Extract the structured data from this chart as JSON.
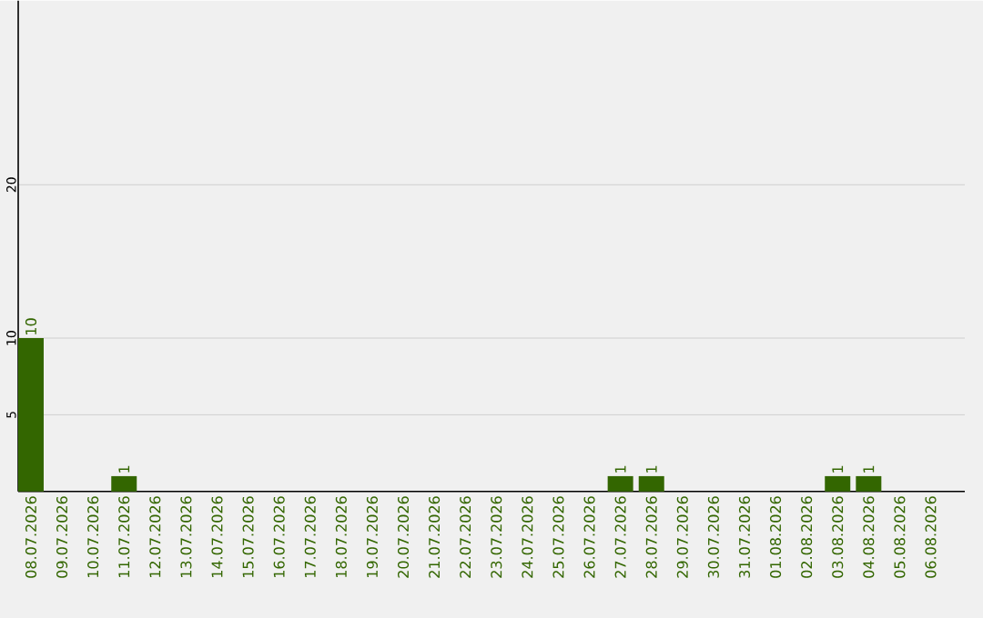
{
  "chart_data": {
    "type": "bar",
    "categories": [
      "08.07.2026",
      "09.07.2026",
      "10.07.2026",
      "11.07.2026",
      "12.07.2026",
      "13.07.2026",
      "14.07.2026",
      "15.07.2026",
      "16.07.2026",
      "17.07.2026",
      "18.07.2026",
      "19.07.2026",
      "20.07.2026",
      "21.07.2026",
      "22.07.2026",
      "23.07.2026",
      "24.07.2026",
      "25.07.2026",
      "26.07.2026",
      "27.07.2026",
      "28.07.2026",
      "29.07.2026",
      "30.07.2026",
      "31.07.2026",
      "01.08.2026",
      "02.08.2026",
      "03.08.2026",
      "04.08.2026",
      "05.08.2026",
      "06.08.2026"
    ],
    "values": [
      10,
      0,
      0,
      1,
      0,
      0,
      0,
      0,
      0,
      0,
      0,
      0,
      0,
      0,
      0,
      0,
      0,
      0,
      0,
      1,
      1,
      0,
      0,
      0,
      0,
      0,
      1,
      1,
      0,
      0
    ],
    "value_labels": [
      "10",
      null,
      null,
      "1",
      null,
      null,
      null,
      null,
      null,
      null,
      null,
      null,
      null,
      null,
      null,
      null,
      null,
      null,
      null,
      "1",
      "1",
      null,
      null,
      null,
      null,
      null,
      "1",
      "1",
      null,
      null
    ],
    "color": "#336600",
    "ylim": [
      0,
      32
    ],
    "yticks": [
      5,
      10,
      20
    ],
    "grid": "y"
  }
}
